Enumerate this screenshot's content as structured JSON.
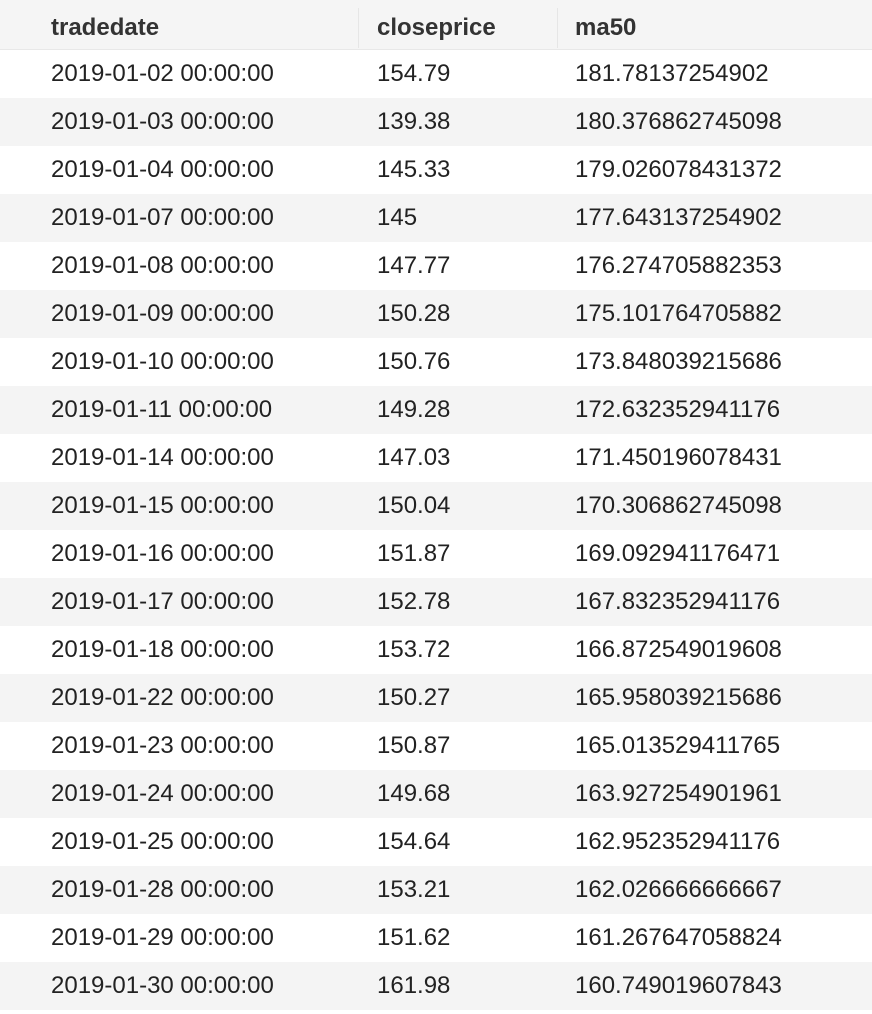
{
  "table": {
    "columns": [
      "tradedate",
      "closeprice",
      "ma50"
    ],
    "rows": [
      [
        "2019-01-02 00:00:00",
        "154.79",
        "181.78137254902"
      ],
      [
        "2019-01-03 00:00:00",
        "139.38",
        "180.376862745098"
      ],
      [
        "2019-01-04 00:00:00",
        "145.33",
        "179.026078431372"
      ],
      [
        "2019-01-07 00:00:00",
        "145",
        "177.643137254902"
      ],
      [
        "2019-01-08 00:00:00",
        "147.77",
        "176.274705882353"
      ],
      [
        "2019-01-09 00:00:00",
        "150.28",
        "175.101764705882"
      ],
      [
        "2019-01-10 00:00:00",
        "150.76",
        "173.848039215686"
      ],
      [
        "2019-01-11 00:00:00",
        "149.28",
        "172.632352941176"
      ],
      [
        "2019-01-14 00:00:00",
        "147.03",
        "171.450196078431"
      ],
      [
        "2019-01-15 00:00:00",
        "150.04",
        "170.306862745098"
      ],
      [
        "2019-01-16 00:00:00",
        "151.87",
        "169.092941176471"
      ],
      [
        "2019-01-17 00:00:00",
        "152.78",
        "167.832352941176"
      ],
      [
        "2019-01-18 00:00:00",
        "153.72",
        "166.872549019608"
      ],
      [
        "2019-01-22 00:00:00",
        "150.27",
        "165.958039215686"
      ],
      [
        "2019-01-23 00:00:00",
        "150.87",
        "165.013529411765"
      ],
      [
        "2019-01-24 00:00:00",
        "149.68",
        "163.927254901961"
      ],
      [
        "2019-01-25 00:00:00",
        "154.64",
        "162.952352941176"
      ],
      [
        "2019-01-28 00:00:00",
        "153.21",
        "162.026666666667"
      ],
      [
        "2019-01-29 00:00:00",
        "151.62",
        "161.267647058824"
      ],
      [
        "2019-01-30 00:00:00",
        "161.98",
        "160.749019607843"
      ]
    ]
  },
  "colors": {
    "header_bg": "#f5f5f5",
    "alt_row_bg": "#f4f4f4",
    "text": "#222222"
  }
}
